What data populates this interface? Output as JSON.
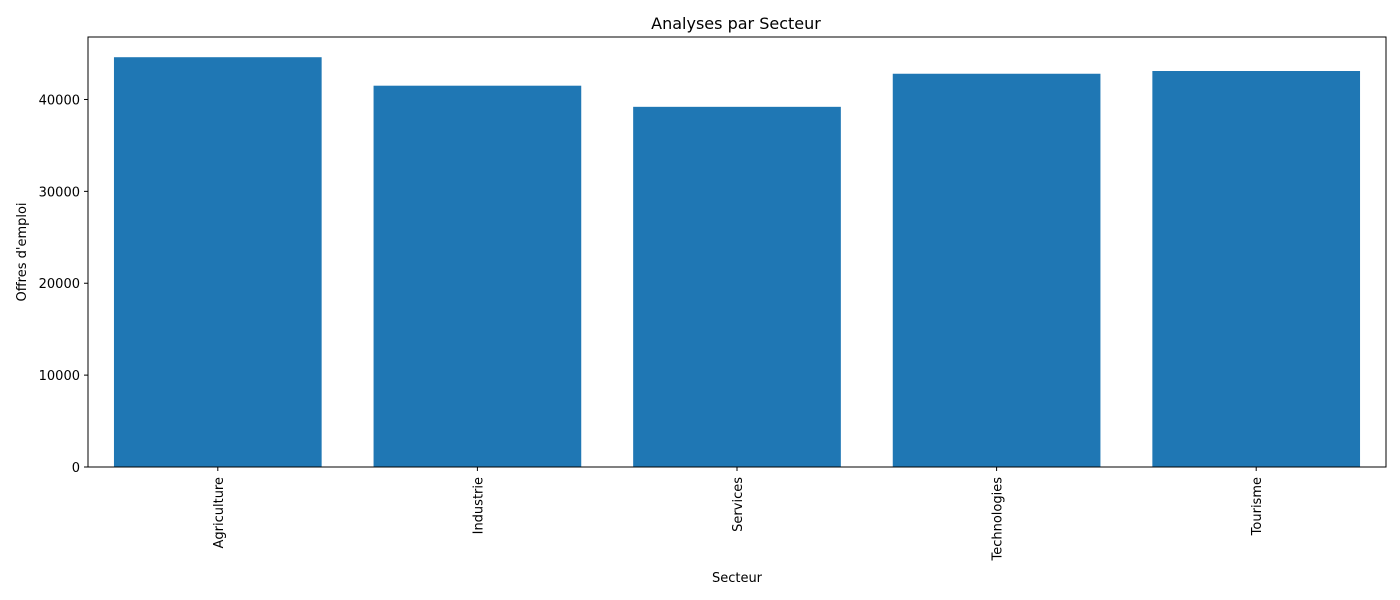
{
  "chart_data": {
    "type": "bar",
    "title": "Analyses par Secteur",
    "xlabel": "Secteur",
    "ylabel": "Offres d'emploi",
    "categories": [
      "Agriculture",
      "Industrie",
      "Services",
      "Technologies",
      "Tourisme"
    ],
    "values": [
      44600,
      41500,
      39200,
      42800,
      43100
    ],
    "ylim": [
      0,
      46800
    ],
    "yticks": [
      0,
      10000,
      20000,
      30000,
      40000
    ],
    "ytick_labels": [
      "0",
      "10000",
      "20000",
      "30000",
      "40000"
    ],
    "xtick_rotation": "vertical",
    "grid": false,
    "legend": "none",
    "bar_color": "#1f77b4"
  }
}
